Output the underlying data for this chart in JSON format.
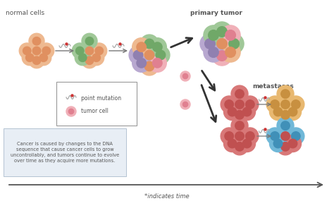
{
  "bg_color": "#ffffff",
  "title_color": "#555555",
  "arrow_color": "#333333",
  "timeline_color": "#555555",
  "labels": {
    "normal_cells": "normal cells",
    "primary_tumor": "primary tumor",
    "metastases": "metastases",
    "time": "*indicates time",
    "point_mutation": "point mutation",
    "tumor_cell": "tumor cell",
    "cancer_text": "Cancer is caused by changes to the DNA\nsequence that cause cancer cells to grow\nuncontrollably, and tumors continue to evolve\nover time as they acquire more mutations."
  },
  "colors": {
    "normal_orange": "#EEB990",
    "normal_orange_inner": "#E09060",
    "green": "#A0C898",
    "green_inner": "#70A868",
    "purple": "#B8A8D0",
    "purple_inner": "#9080B0",
    "pink_light": "#F0B0B8",
    "pink_inner": "#E08090",
    "salmon": "#D87878",
    "salmon_inner": "#C05050",
    "orange_meta": "#E8B870",
    "orange_meta_inner": "#C89040",
    "blue_meta": "#70B8D8",
    "blue_meta_inner": "#4090B8",
    "dna_line": "#999999",
    "dna_dot": "#CC3333",
    "text_color": "#555555",
    "legend_edge": "#999999",
    "box_bg": "#e8eef5",
    "box_edge": "#aabbcc"
  }
}
